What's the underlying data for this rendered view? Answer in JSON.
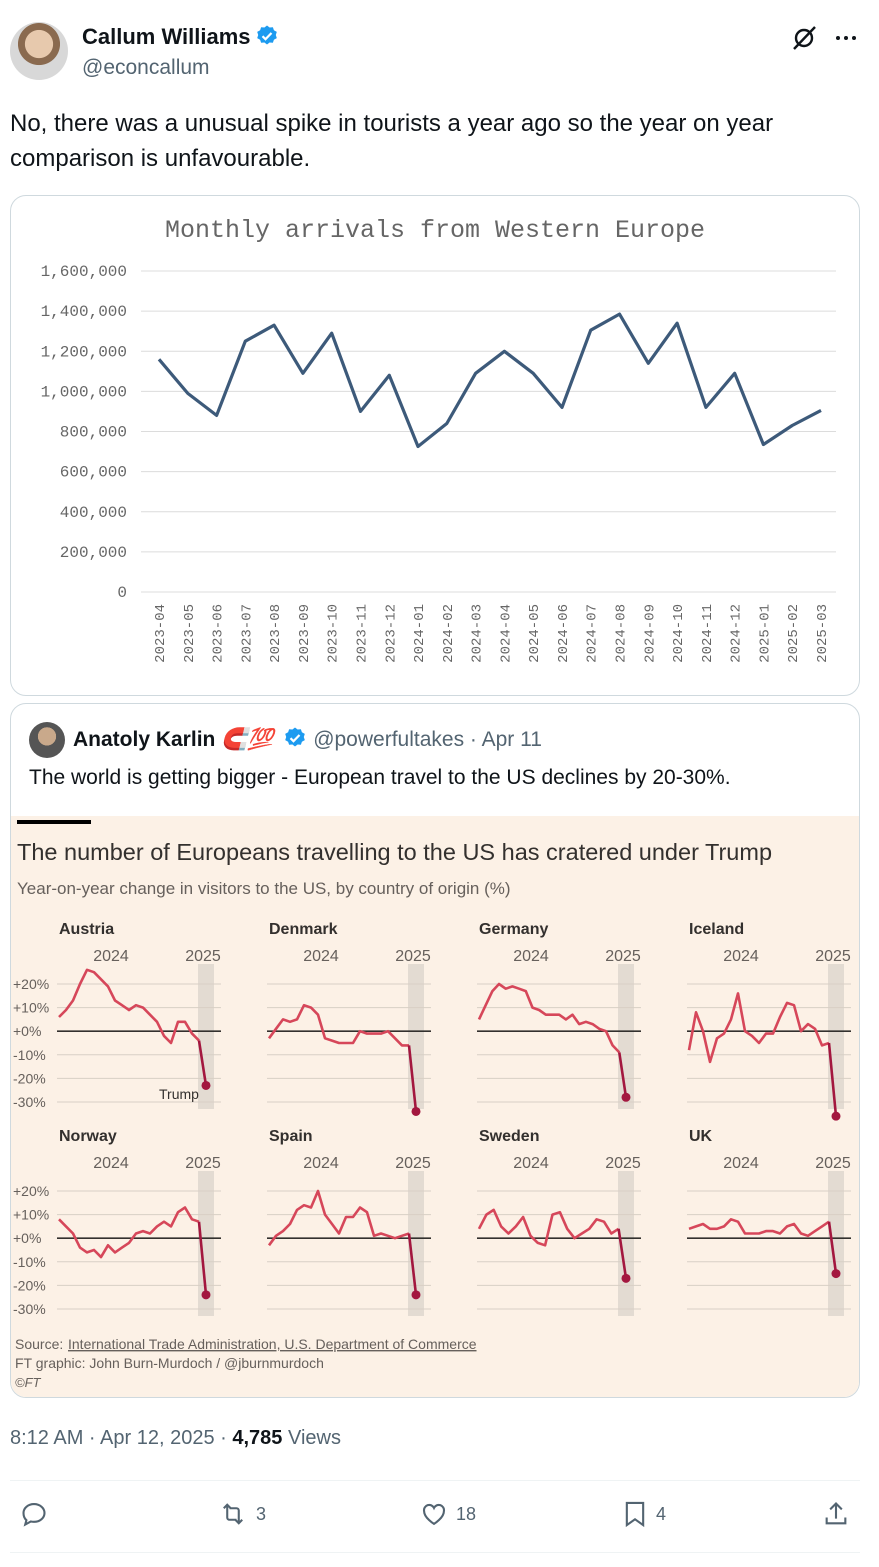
{
  "post": {
    "author_name": "Callum Williams",
    "author_handle": "@econcallum",
    "text": "No, there was a unusual spike in tourists a year ago so the year on year comparison is unfavourable."
  },
  "chart_data": [
    {
      "type": "line",
      "title": "Monthly arrivals from Western Europe",
      "x": [
        "2023-04",
        "2023-05",
        "2023-06",
        "2023-07",
        "2023-08",
        "2023-09",
        "2023-10",
        "2023-11",
        "2023-12",
        "2024-01",
        "2024-02",
        "2024-03",
        "2024-04",
        "2024-05",
        "2024-06",
        "2024-07",
        "2024-08",
        "2024-09",
        "2024-10",
        "2024-11",
        "2024-12",
        "2025-01",
        "2025-02",
        "2025-03"
      ],
      "values": [
        1160000,
        990000,
        880000,
        1250000,
        1330000,
        1090000,
        1290000,
        900000,
        1080000,
        725000,
        840000,
        1090000,
        1200000,
        1090000,
        920000,
        1305000,
        1385000,
        1140000,
        1340000,
        920000,
        1090000,
        735000,
        830000,
        905000
      ],
      "yticks": [
        "1,600,000",
        "1,400,000",
        "1,200,000",
        "1,000,000",
        "800,000",
        "600,000",
        "400,000",
        "200,000",
        "0"
      ],
      "ylim": [
        0,
        1600000
      ],
      "grid": true,
      "color": "#3d5a7a"
    },
    {
      "type": "line",
      "title": "The number of Europeans travelling to the US has cratered under Trump",
      "subtitle": "Year-on-year change in visitors to the US, by country of origin (%)",
      "x_labels": [
        "2024",
        "2025"
      ],
      "yticks": [
        "+20%",
        "+10%",
        "+0%",
        "-10%",
        "-20%",
        "-30%"
      ],
      "ylim": [
        -35,
        25
      ],
      "annotation": "Trump",
      "color": "#d6475a",
      "highlight_color": "#a3173f",
      "panels": [
        {
          "name": "Austria",
          "values": [
            6,
            9,
            13,
            20,
            26,
            25,
            22,
            19,
            13,
            11,
            9,
            11,
            10,
            7,
            4,
            -2,
            -5,
            4,
            4,
            -1,
            -4,
            -23
          ]
        },
        {
          "name": "Denmark",
          "values": [
            -3,
            1,
            5,
            4,
            5,
            11,
            10,
            7,
            -3,
            -4,
            -5,
            -5,
            -5,
            0,
            -1,
            -1,
            -1,
            0,
            -3,
            -6,
            -6,
            -34
          ]
        },
        {
          "name": "Germany",
          "values": [
            5,
            11,
            17,
            20,
            18,
            19,
            18,
            17,
            10,
            9,
            7,
            7,
            7,
            5,
            7,
            3,
            4,
            3,
            1,
            0,
            -6,
            -9,
            -28
          ]
        },
        {
          "name": "Iceland",
          "values": [
            -8,
            8,
            0,
            -13,
            -3,
            -1,
            5,
            16,
            0,
            -2,
            -5,
            -1,
            -1,
            6,
            12,
            11,
            0,
            3,
            1,
            -6,
            -5,
            -36
          ]
        },
        {
          "name": "Norway",
          "values": [
            8,
            5,
            2,
            -4,
            -6,
            -5,
            -8,
            -3,
            -6,
            -4,
            -2,
            2,
            3,
            2,
            5,
            7,
            5,
            11,
            13,
            8,
            7,
            -24
          ]
        },
        {
          "name": "Spain",
          "values": [
            -3,
            1,
            3,
            6,
            12,
            14,
            13,
            20,
            10,
            6,
            2,
            9,
            9,
            13,
            11,
            1,
            2,
            1,
            0,
            1,
            2,
            -24
          ]
        },
        {
          "name": "Sweden",
          "values": [
            4,
            10,
            12,
            5,
            2,
            5,
            9,
            1,
            -2,
            -3,
            10,
            11,
            4,
            0,
            2,
            4,
            8,
            7,
            2,
            4,
            -17
          ]
        },
        {
          "name": "UK",
          "values": [
            4,
            5,
            6,
            4,
            4,
            5,
            8,
            7,
            2,
            2,
            2,
            3,
            3,
            2,
            5,
            6,
            2,
            1,
            3,
            5,
            7,
            -15
          ]
        }
      ],
      "source_label": "Source:",
      "source": "International Trade Administration, U.S. Department of Commerce",
      "credit": "FT graphic: John Burn-Murdoch / @jburnmurdoch",
      "copyright": "©FT"
    }
  ],
  "quote": {
    "author_name": "Anatoly Karlin",
    "author_emoji": "🧲💯",
    "author_handle": "@powerfultakes",
    "date": "· Apr 11",
    "text": "The world is getting bigger - European travel to the US declines by 20-30%."
  },
  "meta": {
    "time": "8:12 AM · Apr 12, 2025 · ",
    "views_count": "4,785",
    "views_label": " Views"
  },
  "actions": {
    "retweets": "3",
    "likes": "18",
    "bookmarks": "4"
  },
  "colors": {
    "verified": "#1d9bf0",
    "ft_background": "#fcf1e6"
  }
}
